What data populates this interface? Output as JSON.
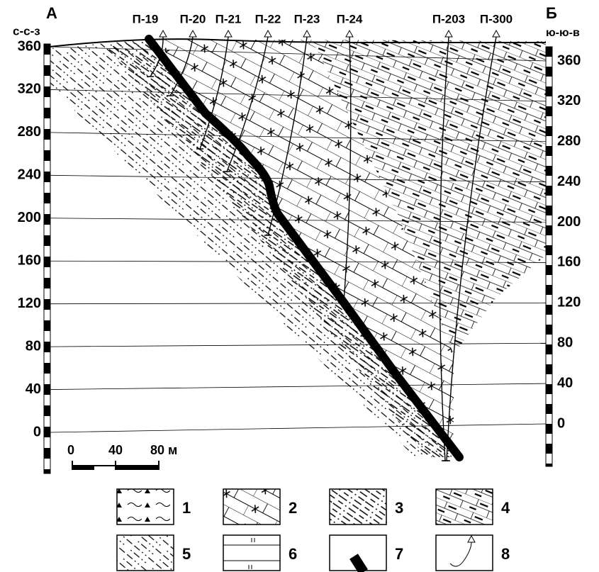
{
  "header": {
    "left_label": "А",
    "right_label": "Б",
    "left_direction": "с-с-з",
    "right_direction": "ю-ю-в"
  },
  "left_scale": [
    360,
    320,
    280,
    240,
    200,
    160,
    120,
    80,
    40,
    0
  ],
  "right_scale": [
    360,
    320,
    280,
    240,
    200,
    160,
    120,
    80,
    40,
    0
  ],
  "boreholes": [
    "П-19",
    "П-20",
    "П-21",
    "П-22",
    "П-23",
    "П-24",
    "П-203",
    "П-300"
  ],
  "scale_bar": {
    "labels": [
      "0",
      "40",
      "80 м"
    ]
  },
  "legend": [
    1,
    2,
    3,
    4,
    5,
    6,
    7,
    8
  ]
}
